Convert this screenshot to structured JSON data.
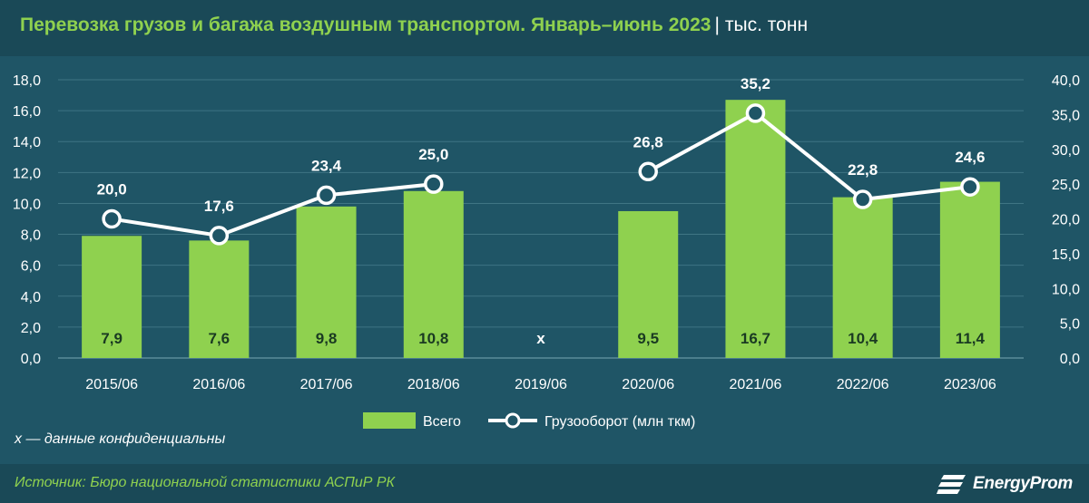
{
  "header": {
    "title": "Перевозка грузов и багажа воздушным транспортом. Январь–июнь 2023",
    "separator": "|",
    "unit": "тыс. тонн"
  },
  "chart_data": {
    "type": "bar",
    "categories": [
      "2015/06",
      "2016/06",
      "2017/06",
      "2018/06",
      "2019/06",
      "2020/06",
      "2021/06",
      "2022/06",
      "2023/06"
    ],
    "series": [
      {
        "name": "Всего",
        "type": "bar",
        "axis": "left",
        "values": [
          7.9,
          7.6,
          9.8,
          10.8,
          null,
          9.5,
          16.7,
          10.4,
          11.4
        ],
        "labels": [
          "7,9",
          "7,6",
          "9,8",
          "10,8",
          "x",
          "9,5",
          "16,7",
          "10,4",
          "11,4"
        ],
        "color": "#8fd14f"
      },
      {
        "name": "Грузооборот (млн ткм)",
        "type": "line",
        "axis": "right",
        "values": [
          20.0,
          17.6,
          23.4,
          25.0,
          null,
          26.8,
          35.2,
          22.8,
          24.6
        ],
        "labels": [
          "20,0",
          "17,6",
          "23,4",
          "25,0",
          "",
          "26,8",
          "35,2",
          "22,8",
          "24,6"
        ],
        "color": "#ffffff"
      }
    ],
    "y_left": {
      "min": 0,
      "max": 18,
      "ticks": [
        "0,0",
        "2,0",
        "4,0",
        "6,0",
        "8,0",
        "10,0",
        "12,0",
        "14,0",
        "16,0",
        "18,0"
      ]
    },
    "y_right": {
      "min": 0,
      "max": 40,
      "ticks": [
        "0,0",
        "5,0",
        "10,0",
        "15,0",
        "20,0",
        "25,0",
        "30,0",
        "35,0",
        "40,0"
      ]
    },
    "grid": true,
    "legend_position": "bottom-center"
  },
  "note": "x — данные конфиденциальны",
  "source": "Источник: Бюро национальной статистики АСПиР РК",
  "logo": "EnergyProm"
}
